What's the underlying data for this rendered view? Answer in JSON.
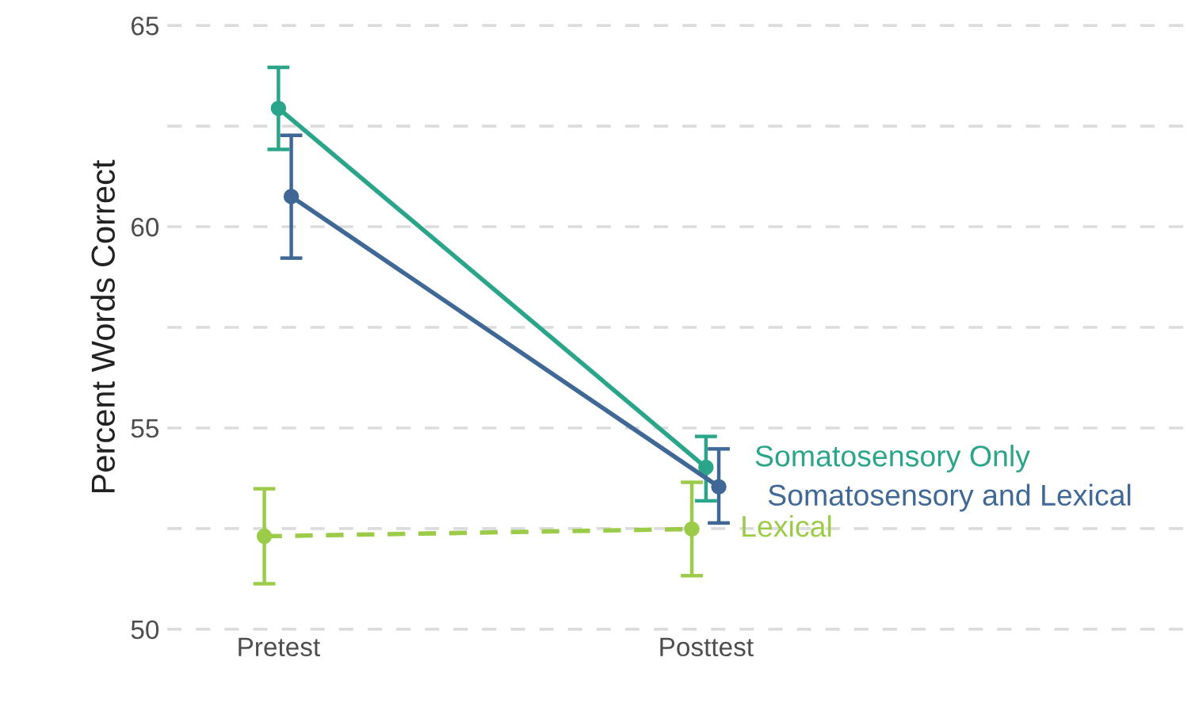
{
  "chart_data": {
    "type": "line",
    "ylabel": "Percent Words Correct",
    "categories": [
      "Pretest",
      "Posttest"
    ],
    "series": [
      {
        "name": "Somatosensory Only",
        "color": "#2ba58a",
        "values": [
          62.94,
          54.02
        ],
        "errors": [
          [
            61.92,
            63.96
          ],
          [
            53.19,
            54.79
          ]
        ],
        "line_style": "solid"
      },
      {
        "name": "Somatosensory and Lexical",
        "color": "#3f6896",
        "values": [
          60.75,
          53.54
        ],
        "errors": [
          [
            59.22,
            62.27
          ],
          [
            52.64,
            54.48
          ]
        ],
        "line_style": "solid"
      },
      {
        "name": "Lexical",
        "color": "#9bcb49",
        "values": [
          52.31,
          52.49
        ],
        "errors": [
          [
            51.13,
            53.49
          ],
          [
            51.33,
            53.65
          ]
        ],
        "line_style": "dashed"
      }
    ],
    "ylim": [
      50,
      65
    ],
    "yticks": [
      50,
      {
        "value": 52.5,
        "label": null
      },
      55,
      {
        "value": 57.5,
        "label": null
      },
      60,
      {
        "value": 62.5,
        "label": null
      },
      65
    ],
    "grid": "y",
    "marker": "circle",
    "legend": false
  }
}
